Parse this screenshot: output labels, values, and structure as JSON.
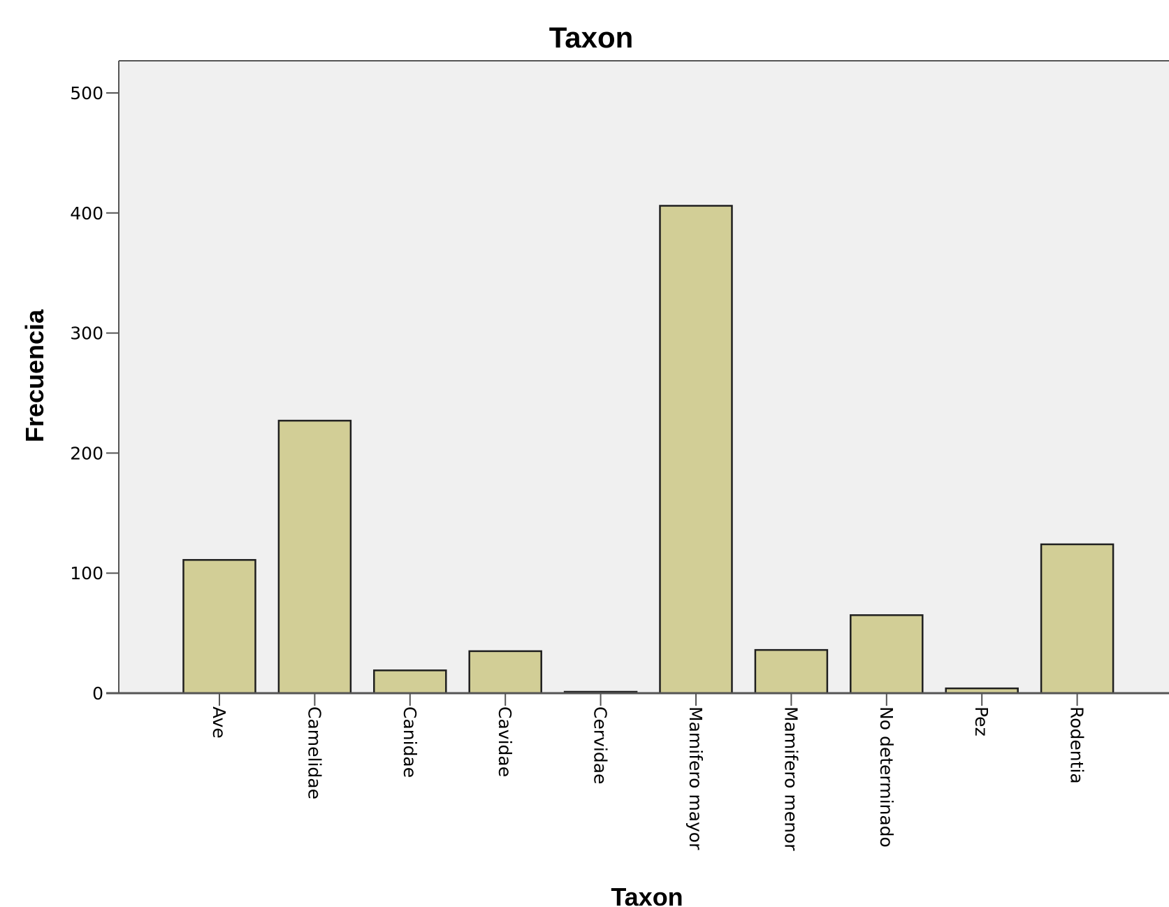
{
  "colors": {
    "bar_fill": "#d2ce96",
    "bar_stroke": "#1f1f1f",
    "plot_background": "#f0f0f0",
    "axis": "#555555"
  },
  "chart_data": {
    "type": "bar",
    "title": "Taxon",
    "xlabel": "Taxon",
    "ylabel": "Frecuencia",
    "ylim": [
      0,
      525
    ],
    "yticks": [
      0,
      100,
      200,
      300,
      400,
      500
    ],
    "grid": false,
    "legend": "none",
    "categories": [
      "Ave",
      "Camelidae",
      "Canidae",
      "Cavidae",
      "Cervidae",
      "Mamifero mayor",
      "Mamifero menor",
      "No determinado",
      "Pez",
      "Rodentia"
    ],
    "values": [
      111,
      227,
      19,
      35,
      1,
      406,
      36,
      65,
      4,
      124
    ]
  }
}
